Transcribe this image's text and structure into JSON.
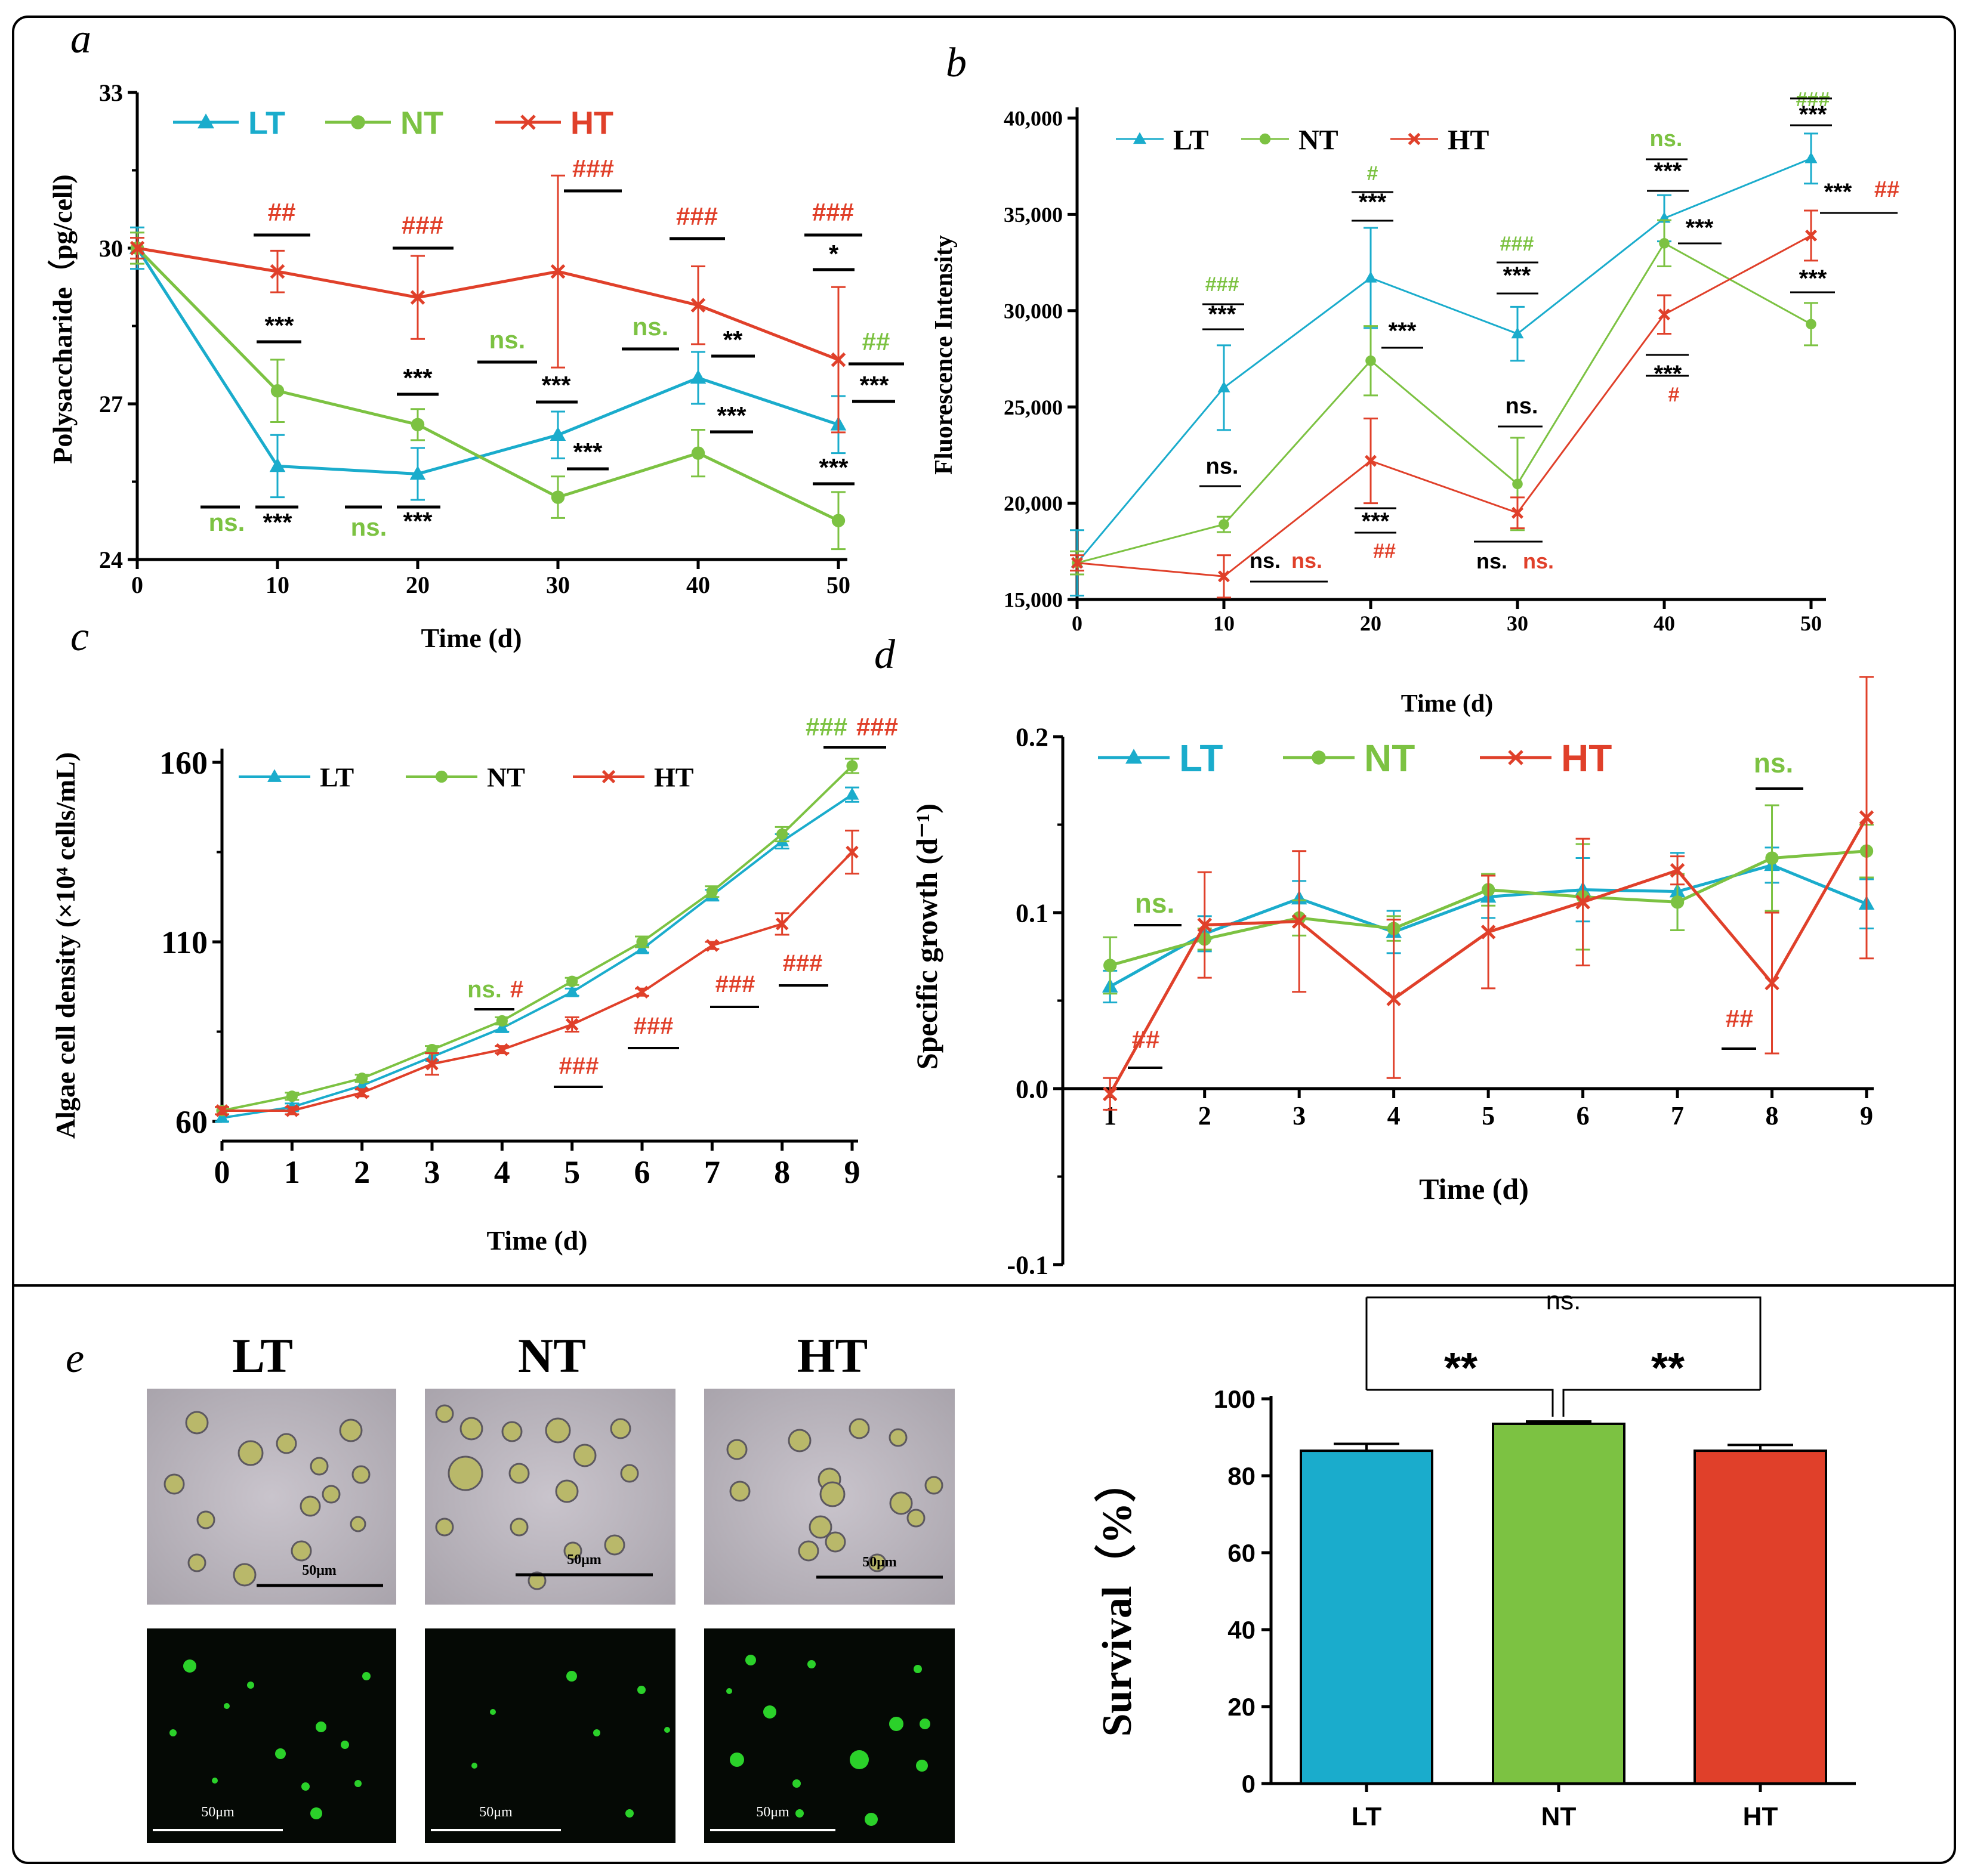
{
  "colors": {
    "LT": "#1aaccc",
    "NT": "#7cc242",
    "HT": "#e0402a",
    "black": "#000000"
  },
  "panel_labels": {
    "a": "a",
    "b": "b",
    "c": "c",
    "d": "d",
    "e": "e"
  },
  "chart_data": [
    {
      "id": "a",
      "type": "line",
      "xlabel": "Time (d)",
      "ylabel": "Polysaccharide（pg/cell)",
      "x": [
        0,
        10,
        20,
        30,
        40,
        50
      ],
      "xlim": [
        0,
        50
      ],
      "ylim": [
        24,
        33
      ],
      "xticks": [
        "0",
        "10",
        "20",
        "30",
        "40",
        "50"
      ],
      "yticks": [
        "24",
        "27",
        "30",
        "33"
      ],
      "legend": [
        "LT",
        "NT",
        "HT"
      ],
      "series": [
        {
          "name": "LT",
          "values": [
            30.0,
            25.8,
            25.65,
            26.4,
            27.5,
            26.6
          ],
          "err": [
            0.4,
            0.6,
            0.5,
            0.45,
            0.5,
            0.55
          ]
        },
        {
          "name": "NT",
          "values": [
            30.0,
            27.25,
            26.6,
            25.2,
            26.05,
            24.75
          ],
          "err": [
            0.3,
            0.6,
            0.3,
            0.4,
            0.45,
            0.55
          ]
        },
        {
          "name": "HT",
          "values": [
            30.0,
            29.55,
            29.05,
            29.55,
            28.9,
            27.85
          ],
          "err": [
            0.2,
            0.4,
            0.8,
            1.85,
            0.75,
            1.4
          ]
        }
      ],
      "annotations": [
        "##",
        "***",
        "ns.",
        "***",
        "###",
        "***",
        "ns.",
        "***",
        "###",
        "ns.",
        "***",
        "***",
        "###",
        "ns.",
        "**",
        "***",
        "###",
        "*",
        "##",
        "***",
        "***"
      ]
    },
    {
      "id": "b",
      "type": "line",
      "xlabel": "Time (d)",
      "ylabel": "Fluorescence Intensity",
      "x": [
        0,
        10,
        20,
        30,
        40,
        50
      ],
      "xlim": [
        0,
        50
      ],
      "ylim": [
        15000,
        40000
      ],
      "xticks": [
        "0",
        "10",
        "20",
        "30",
        "40",
        "50"
      ],
      "yticks": [
        "15,000",
        "20,000",
        "25,000",
        "30,000",
        "35,000",
        "40,000"
      ],
      "legend": [
        "LT",
        "NT",
        "HT"
      ],
      "series": [
        {
          "name": "LT",
          "values": [
            16900,
            26000,
            31700,
            28800,
            34800,
            37900
          ],
          "err": [
            1700,
            2200,
            2600,
            1400,
            1200,
            1300
          ]
        },
        {
          "name": "NT",
          "values": [
            16900,
            18900,
            27400,
            21000,
            33500,
            29300
          ],
          "err": [
            600,
            400,
            1800,
            2400,
            1200,
            1100
          ]
        },
        {
          "name": "HT",
          "values": [
            16900,
            16200,
            22200,
            19500,
            29800,
            33900
          ],
          "err": [
            400,
            1100,
            2200,
            800,
            1000,
            1300
          ]
        }
      ],
      "annotations": [
        "###",
        "***",
        "ns.",
        "ns.",
        "ns.",
        "#",
        "***",
        "***",
        "***",
        "##",
        "###",
        "***",
        "ns.",
        "ns.",
        "ns.",
        "ns.",
        "***",
        "***",
        "***",
        "#",
        "###",
        "***",
        "***",
        "***",
        "##",
        "***"
      ]
    },
    {
      "id": "c",
      "type": "line",
      "xlabel": "Time (d)",
      "ylabel": "Algae cell density (×10⁴ cells/mL)",
      "x": [
        0,
        1,
        2,
        3,
        4,
        5,
        6,
        7,
        8,
        9
      ],
      "xlim": [
        0,
        9
      ],
      "ylim": [
        60,
        160
      ],
      "xticks": [
        "0",
        "1",
        "2",
        "3",
        "4",
        "5",
        "6",
        "7",
        "8",
        "9"
      ],
      "yticks": [
        "60",
        "110",
        "160"
      ],
      "legend": [
        "LT",
        "NT",
        "HT"
      ],
      "series": [
        {
          "name": "LT",
          "values": [
            61,
            64,
            70,
            78,
            86,
            96,
            108,
            123,
            138,
            151
          ],
          "err": [
            1,
            1,
            1,
            1,
            1,
            1,
            1,
            1.5,
            2,
            2
          ]
        },
        {
          "name": "NT",
          "values": [
            63,
            67,
            72,
            80,
            88,
            99,
            110,
            124,
            140,
            159
          ],
          "err": [
            1,
            1,
            1,
            1,
            1,
            1,
            1.5,
            1.5,
            2,
            2
          ]
        },
        {
          "name": "HT",
          "values": [
            63,
            63,
            68,
            76,
            80,
            87,
            96,
            109,
            115,
            135
          ],
          "err": [
            1,
            1,
            1,
            3,
            1,
            2,
            1,
            1,
            3,
            6
          ]
        }
      ],
      "annotations": [
        "ns.",
        "#",
        "###",
        "###",
        "###",
        "###",
        "###",
        "###"
      ]
    },
    {
      "id": "d",
      "type": "line",
      "xlabel": "Time (d)",
      "ylabel": "Specific growth (d⁻¹)",
      "x": [
        1,
        2,
        3,
        4,
        5,
        6,
        7,
        8,
        9
      ],
      "xlim": [
        0.5,
        9
      ],
      "ylim": [
        -0.1,
        0.2
      ],
      "xticks": [
        "1",
        "2",
        "3",
        "4",
        "5",
        "6",
        "7",
        "8",
        "9"
      ],
      "yticks": [
        "-0.1",
        "0.0",
        "0.1",
        "0.2"
      ],
      "legend": [
        "LT",
        "NT",
        "HT"
      ],
      "series": [
        {
          "name": "LT",
          "values": [
            0.058,
            0.088,
            0.108,
            0.089,
            0.109,
            0.113,
            0.112,
            0.127,
            0.105
          ],
          "err": [
            0.009,
            0.01,
            0.01,
            0.012,
            0.012,
            0.018,
            0.022,
            0.01,
            0.014
          ]
        },
        {
          "name": "NT",
          "values": [
            0.07,
            0.085,
            0.097,
            0.091,
            0.113,
            0.109,
            0.106,
            0.131,
            0.135
          ],
          "err": [
            0.016,
            0.006,
            0.01,
            0.007,
            0.009,
            0.03,
            0.016,
            0.03,
            0.015
          ]
        },
        {
          "name": "HT",
          "values": [
            -0.003,
            0.093,
            0.095,
            0.051,
            0.089,
            0.106,
            0.124,
            0.06,
            0.154
          ],
          "err": [
            0.009,
            0.03,
            0.04,
            0.045,
            0.032,
            0.036,
            0.008,
            0.04,
            0.08
          ]
        }
      ],
      "annotations": [
        "ns.",
        "##",
        "ns.",
        "##"
      ]
    },
    {
      "id": "e",
      "type": "bar",
      "ylabel": "Survival（%）",
      "categories": [
        "LT",
        "NT",
        "HT"
      ],
      "values": [
        86.5,
        93.5,
        86.5
      ],
      "err": [
        1.8,
        0.6,
        1.5
      ],
      "ylim": [
        0,
        100
      ],
      "yticks": [
        "0",
        "20",
        "40",
        "60",
        "80",
        "100"
      ],
      "annotations": [
        "ns.",
        "**",
        "**"
      ]
    }
  ],
  "micrographs": {
    "titles": [
      "LT",
      "NT",
      "HT"
    ],
    "scale_bar": "50μm"
  }
}
